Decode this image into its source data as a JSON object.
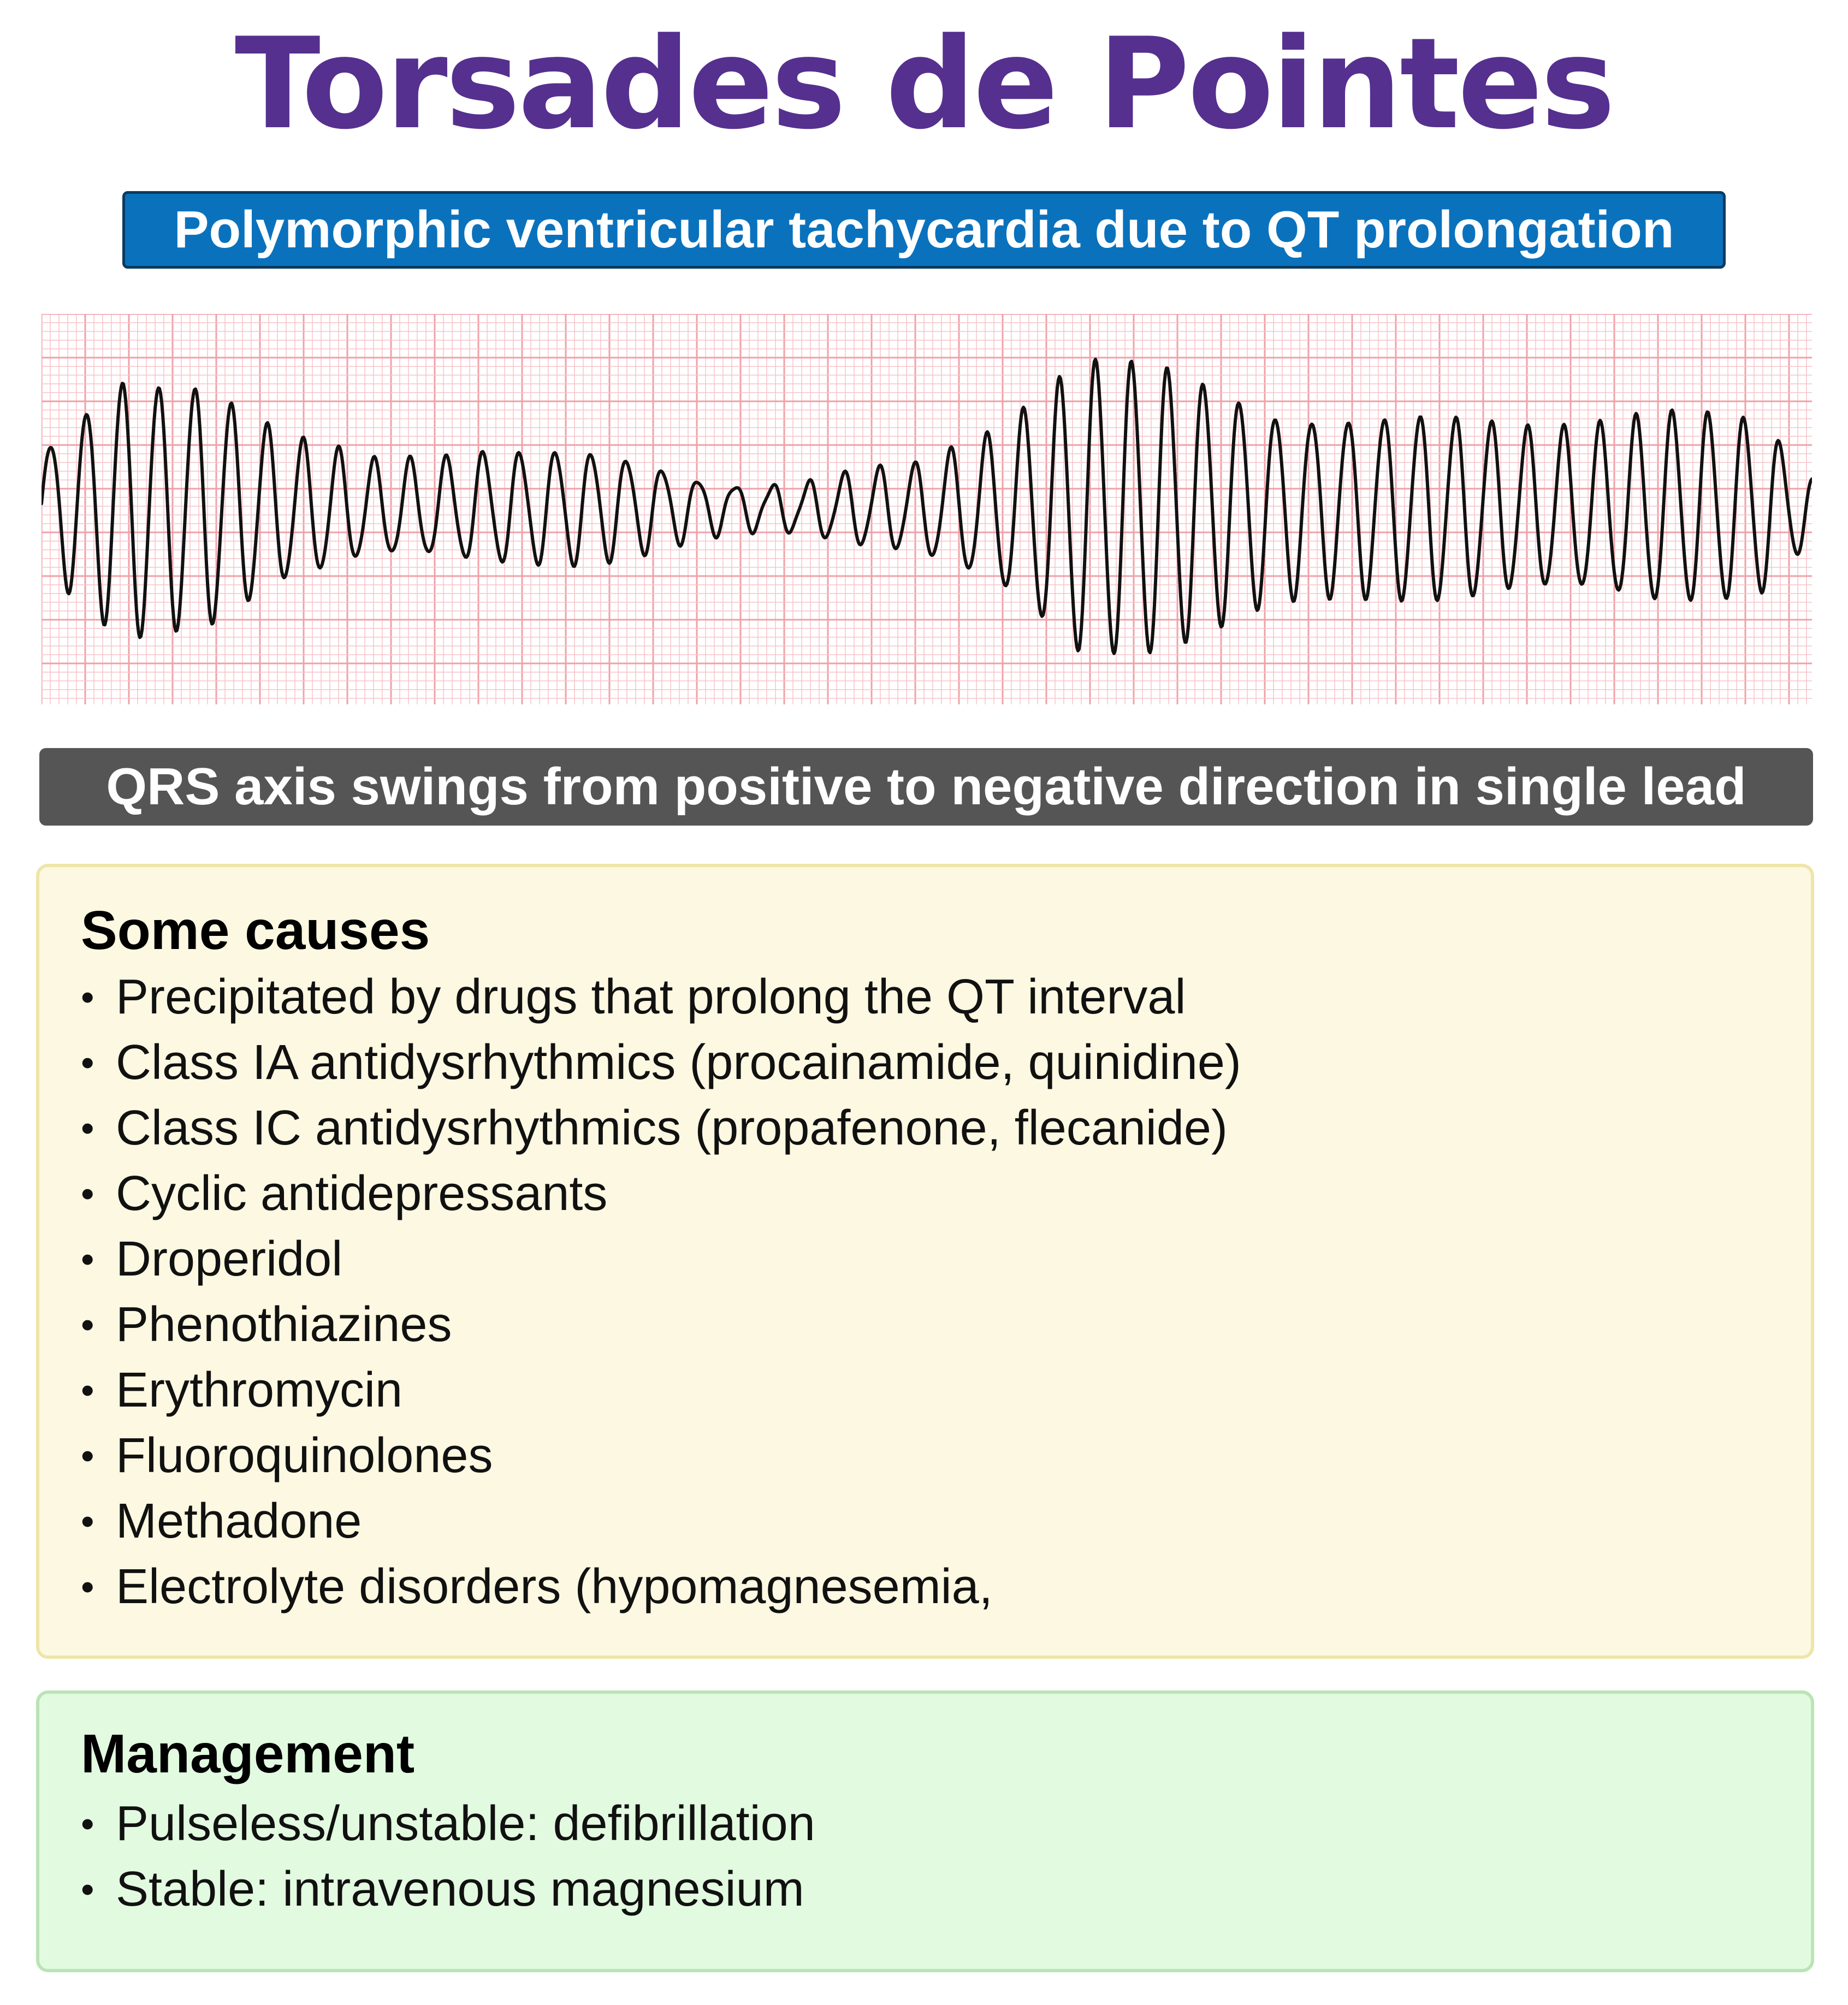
{
  "title": "Torsades de Pointes",
  "subtitle": "Polymorphic ventricular tachycardia due to QT prolongation",
  "axis_note": "QRS axis swings from positive to negative direction in single lead",
  "causes": {
    "heading": "Some causes",
    "items": [
      "Precipitated by drugs that prolong the QT interval",
      "Class IA antidysrhythmics (procainamide, quinidine)",
      "Class IC antidysrhythmics (propafenone, flecanide)",
      "Cyclic antidepressants",
      "Droperidol",
      "Phenothiazines",
      "Erythromycin",
      "Fluoroquinolones",
      "Methadone",
      "Electrolyte disorders (hypomagnesemia,"
    ]
  },
  "management": {
    "heading": "Management",
    "items": [
      "Pulseless/unstable: defibrillation",
      "Stable: intravenous magnesium"
    ]
  },
  "colors": {
    "title": "#55308f",
    "subtitle_bg": "#0a72bd",
    "axis_bg": "#555555",
    "grid_minor": "#f7c4c8",
    "grid_major": "#f0a0a8",
    "trace": "#111111",
    "causes_bg": "#fcf8e1",
    "management_bg": "#e2fae0"
  }
}
